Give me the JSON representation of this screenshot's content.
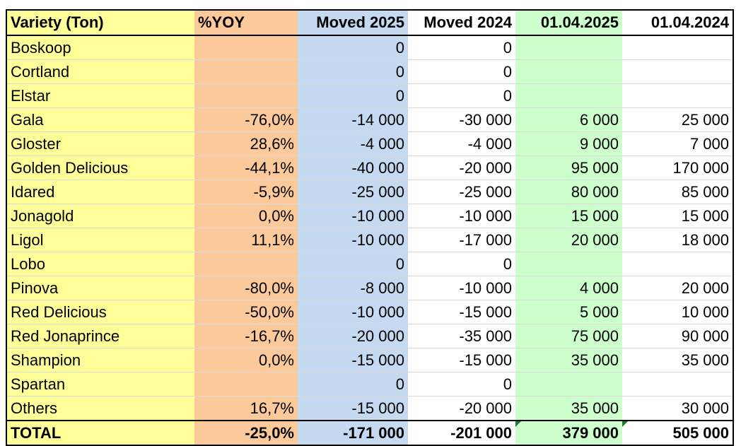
{
  "columns": [
    "Variety (Ton)",
    "%YOY",
    "Moved 2025",
    "Moved 2024",
    "01.04.2025",
    "01.04.2024"
  ],
  "colors": {
    "variety": "#ffff99",
    "yoy": "#fcc99b",
    "moved2025": "#c5d9f1",
    "stock2025": "#ccffcc"
  },
  "rows": [
    [
      "Boskoop",
      "",
      "0",
      "0",
      "",
      ""
    ],
    [
      "Cortland",
      "",
      "0",
      "0",
      "",
      ""
    ],
    [
      "Elstar",
      "",
      "0",
      "0",
      "",
      ""
    ],
    [
      "Gala",
      "-76,0%",
      "-14 000",
      "-30 000",
      "6 000",
      "25 000"
    ],
    [
      "Gloster",
      "28,6%",
      "-4 000",
      "-4 000",
      "9 000",
      "7 000"
    ],
    [
      "Golden Delicious",
      "-44,1%",
      "-40 000",
      "-20 000",
      "95 000",
      "170 000"
    ],
    [
      "Idared",
      "-5,9%",
      "-25 000",
      "-25 000",
      "80 000",
      "85 000"
    ],
    [
      "Jonagold",
      "0,0%",
      "-10 000",
      "-10 000",
      "15 000",
      "15 000"
    ],
    [
      "Ligol",
      "11,1%",
      "-10 000",
      "-17 000",
      "20 000",
      "18 000"
    ],
    [
      "Lobo",
      "",
      "0",
      "0",
      "",
      ""
    ],
    [
      "Pinova",
      "-80,0%",
      "-8 000",
      "-10 000",
      "4 000",
      "20 000"
    ],
    [
      "Red Delicious",
      "-50,0%",
      "-10 000",
      "-15 000",
      "5 000",
      "10 000"
    ],
    [
      "Red Jonaprince",
      "-16,7%",
      "-20 000",
      "-35 000",
      "75 000",
      "90 000"
    ],
    [
      "Shampion",
      "0,0%",
      "-15 000",
      "-15 000",
      "35 000",
      "35 000"
    ],
    [
      "Spartan",
      "",
      "0",
      "0",
      "",
      ""
    ],
    [
      "Others",
      "16,7%",
      "-15 000",
      "-20 000",
      "35 000",
      "30 000"
    ]
  ],
  "total": [
    "TOTAL",
    "-25,0%",
    "-171 000",
    "-201 000",
    "379 000",
    "505 000"
  ]
}
